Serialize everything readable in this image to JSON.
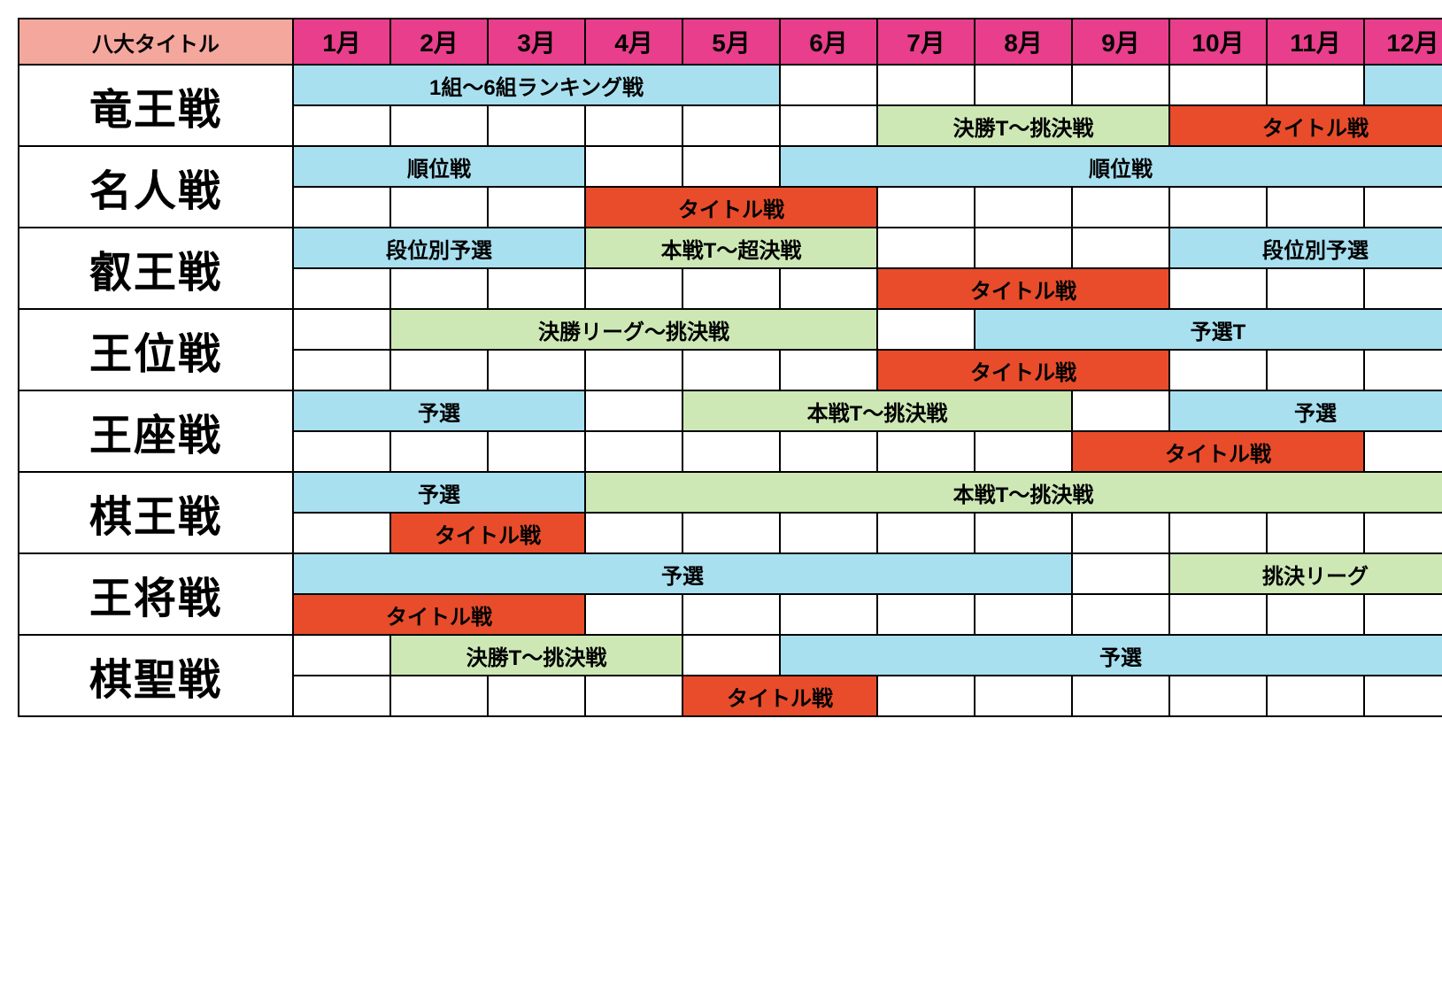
{
  "colors": {
    "corner_bg": "#F4A79D",
    "month_bg": "#E83E8C",
    "blue": "#A8E0F0",
    "green": "#CDE8B5",
    "red": "#E84C2B",
    "white": "#FFFFFF",
    "border": "#000000",
    "text": "#000000"
  },
  "fonts": {
    "title_size": 48,
    "header_size": 28,
    "corner_size": 24,
    "bar_size": 24
  },
  "header": {
    "corner": "八大タイトル",
    "months": [
      "1月",
      "2月",
      "3月",
      "4月",
      "5月",
      "6月",
      "7月",
      "8月",
      "9月",
      "10月",
      "11月",
      "12月"
    ]
  },
  "titles": [
    {
      "name": "竜王戦",
      "rows": [
        [
          {
            "start": 1,
            "span": 5,
            "color": "blue",
            "label": "1組〜6組ランキング戦"
          },
          {
            "start": 6,
            "span": 1,
            "color": "white",
            "label": ""
          },
          {
            "start": 7,
            "span": 1,
            "color": "white",
            "label": ""
          },
          {
            "start": 8,
            "span": 1,
            "color": "white",
            "label": ""
          },
          {
            "start": 9,
            "span": 1,
            "color": "white",
            "label": ""
          },
          {
            "start": 10,
            "span": 1,
            "color": "white",
            "label": ""
          },
          {
            "start": 11,
            "span": 1,
            "color": "white",
            "label": ""
          },
          {
            "start": 12,
            "span": 1,
            "color": "blue",
            "label": ""
          }
        ],
        [
          {
            "start": 1,
            "span": 1,
            "color": "white",
            "label": ""
          },
          {
            "start": 2,
            "span": 1,
            "color": "white",
            "label": ""
          },
          {
            "start": 3,
            "span": 1,
            "color": "white",
            "label": ""
          },
          {
            "start": 4,
            "span": 1,
            "color": "white",
            "label": ""
          },
          {
            "start": 5,
            "span": 1,
            "color": "white",
            "label": ""
          },
          {
            "start": 6,
            "span": 1,
            "color": "white",
            "label": ""
          },
          {
            "start": 7,
            "span": 3,
            "color": "green",
            "label": "決勝T〜挑決戦"
          },
          {
            "start": 10,
            "span": 3,
            "color": "red",
            "label": "タイトル戦"
          }
        ]
      ]
    },
    {
      "name": "名人戦",
      "rows": [
        [
          {
            "start": 1,
            "span": 3,
            "color": "blue",
            "label": "順位戦"
          },
          {
            "start": 4,
            "span": 1,
            "color": "white",
            "label": ""
          },
          {
            "start": 5,
            "span": 1,
            "color": "white",
            "label": ""
          },
          {
            "start": 6,
            "span": 7,
            "color": "blue",
            "label": "順位戦"
          }
        ],
        [
          {
            "start": 1,
            "span": 1,
            "color": "white",
            "label": ""
          },
          {
            "start": 2,
            "span": 1,
            "color": "white",
            "label": ""
          },
          {
            "start": 3,
            "span": 1,
            "color": "white",
            "label": ""
          },
          {
            "start": 4,
            "span": 3,
            "color": "red",
            "label": "タイトル戦"
          },
          {
            "start": 7,
            "span": 1,
            "color": "white",
            "label": ""
          },
          {
            "start": 8,
            "span": 1,
            "color": "white",
            "label": ""
          },
          {
            "start": 9,
            "span": 1,
            "color": "white",
            "label": ""
          },
          {
            "start": 10,
            "span": 1,
            "color": "white",
            "label": ""
          },
          {
            "start": 11,
            "span": 1,
            "color": "white",
            "label": ""
          },
          {
            "start": 12,
            "span": 1,
            "color": "white",
            "label": ""
          }
        ]
      ]
    },
    {
      "name": "叡王戦",
      "rows": [
        [
          {
            "start": 1,
            "span": 3,
            "color": "blue",
            "label": "段位別予選"
          },
          {
            "start": 4,
            "span": 3,
            "color": "green",
            "label": "本戦T〜超決戦"
          },
          {
            "start": 7,
            "span": 1,
            "color": "white",
            "label": ""
          },
          {
            "start": 8,
            "span": 1,
            "color": "white",
            "label": ""
          },
          {
            "start": 9,
            "span": 1,
            "color": "white",
            "label": ""
          },
          {
            "start": 10,
            "span": 3,
            "color": "blue",
            "label": "段位別予選"
          }
        ],
        [
          {
            "start": 1,
            "span": 1,
            "color": "white",
            "label": ""
          },
          {
            "start": 2,
            "span": 1,
            "color": "white",
            "label": ""
          },
          {
            "start": 3,
            "span": 1,
            "color": "white",
            "label": ""
          },
          {
            "start": 4,
            "span": 1,
            "color": "white",
            "label": ""
          },
          {
            "start": 5,
            "span": 1,
            "color": "white",
            "label": ""
          },
          {
            "start": 6,
            "span": 1,
            "color": "white",
            "label": ""
          },
          {
            "start": 7,
            "span": 3,
            "color": "red",
            "label": "タイトル戦"
          },
          {
            "start": 10,
            "span": 1,
            "color": "white",
            "label": ""
          },
          {
            "start": 11,
            "span": 1,
            "color": "white",
            "label": ""
          },
          {
            "start": 12,
            "span": 1,
            "color": "white",
            "label": ""
          }
        ]
      ]
    },
    {
      "name": "王位戦",
      "rows": [
        [
          {
            "start": 1,
            "span": 1,
            "color": "white",
            "label": ""
          },
          {
            "start": 2,
            "span": 5,
            "color": "green",
            "label": "決勝リーグ〜挑決戦"
          },
          {
            "start": 7,
            "span": 1,
            "color": "white",
            "label": ""
          },
          {
            "start": 8,
            "span": 5,
            "color": "blue",
            "label": "予選T"
          }
        ],
        [
          {
            "start": 1,
            "span": 1,
            "color": "white",
            "label": ""
          },
          {
            "start": 2,
            "span": 1,
            "color": "white",
            "label": ""
          },
          {
            "start": 3,
            "span": 1,
            "color": "white",
            "label": ""
          },
          {
            "start": 4,
            "span": 1,
            "color": "white",
            "label": ""
          },
          {
            "start": 5,
            "span": 1,
            "color": "white",
            "label": ""
          },
          {
            "start": 6,
            "span": 1,
            "color": "white",
            "label": ""
          },
          {
            "start": 7,
            "span": 3,
            "color": "red",
            "label": "タイトル戦"
          },
          {
            "start": 10,
            "span": 1,
            "color": "white",
            "label": ""
          },
          {
            "start": 11,
            "span": 1,
            "color": "white",
            "label": ""
          },
          {
            "start": 12,
            "span": 1,
            "color": "white",
            "label": ""
          }
        ]
      ]
    },
    {
      "name": "王座戦",
      "rows": [
        [
          {
            "start": 1,
            "span": 3,
            "color": "blue",
            "label": "予選"
          },
          {
            "start": 4,
            "span": 1,
            "color": "white",
            "label": ""
          },
          {
            "start": 5,
            "span": 4,
            "color": "green",
            "label": "本戦T〜挑決戦"
          },
          {
            "start": 9,
            "span": 1,
            "color": "white",
            "label": ""
          },
          {
            "start": 10,
            "span": 3,
            "color": "blue",
            "label": "予選"
          }
        ],
        [
          {
            "start": 1,
            "span": 1,
            "color": "white",
            "label": ""
          },
          {
            "start": 2,
            "span": 1,
            "color": "white",
            "label": ""
          },
          {
            "start": 3,
            "span": 1,
            "color": "white",
            "label": ""
          },
          {
            "start": 4,
            "span": 1,
            "color": "white",
            "label": ""
          },
          {
            "start": 5,
            "span": 1,
            "color": "white",
            "label": ""
          },
          {
            "start": 6,
            "span": 1,
            "color": "white",
            "label": ""
          },
          {
            "start": 7,
            "span": 1,
            "color": "white",
            "label": ""
          },
          {
            "start": 8,
            "span": 1,
            "color": "white",
            "label": ""
          },
          {
            "start": 9,
            "span": 3,
            "color": "red",
            "label": "タイトル戦"
          },
          {
            "start": 12,
            "span": 1,
            "color": "white",
            "label": ""
          }
        ]
      ]
    },
    {
      "name": "棋王戦",
      "rows": [
        [
          {
            "start": 1,
            "span": 3,
            "color": "blue",
            "label": "予選"
          },
          {
            "start": 4,
            "span": 9,
            "color": "green",
            "label": "本戦T〜挑決戦"
          }
        ],
        [
          {
            "start": 1,
            "span": 1,
            "color": "white",
            "label": ""
          },
          {
            "start": 2,
            "span": 2,
            "color": "red",
            "label": "タイトル戦"
          },
          {
            "start": 4,
            "span": 1,
            "color": "white",
            "label": ""
          },
          {
            "start": 5,
            "span": 1,
            "color": "white",
            "label": ""
          },
          {
            "start": 6,
            "span": 1,
            "color": "white",
            "label": ""
          },
          {
            "start": 7,
            "span": 1,
            "color": "white",
            "label": ""
          },
          {
            "start": 8,
            "span": 1,
            "color": "white",
            "label": ""
          },
          {
            "start": 9,
            "span": 1,
            "color": "white",
            "label": ""
          },
          {
            "start": 10,
            "span": 1,
            "color": "white",
            "label": ""
          },
          {
            "start": 11,
            "span": 1,
            "color": "white",
            "label": ""
          },
          {
            "start": 12,
            "span": 1,
            "color": "white",
            "label": ""
          }
        ]
      ]
    },
    {
      "name": "王将戦",
      "rows": [
        [
          {
            "start": 1,
            "span": 8,
            "color": "blue",
            "label": "予選"
          },
          {
            "start": 9,
            "span": 1,
            "color": "white",
            "label": ""
          },
          {
            "start": 10,
            "span": 3,
            "color": "green",
            "label": "挑決リーグ"
          }
        ],
        [
          {
            "start": 1,
            "span": 3,
            "color": "red",
            "label": "タイトル戦"
          },
          {
            "start": 4,
            "span": 1,
            "color": "white",
            "label": ""
          },
          {
            "start": 5,
            "span": 1,
            "color": "white",
            "label": ""
          },
          {
            "start": 6,
            "span": 1,
            "color": "white",
            "label": ""
          },
          {
            "start": 7,
            "span": 1,
            "color": "white",
            "label": ""
          },
          {
            "start": 8,
            "span": 1,
            "color": "white",
            "label": ""
          },
          {
            "start": 9,
            "span": 1,
            "color": "white",
            "label": ""
          },
          {
            "start": 10,
            "span": 1,
            "color": "white",
            "label": ""
          },
          {
            "start": 11,
            "span": 1,
            "color": "white",
            "label": ""
          },
          {
            "start": 12,
            "span": 1,
            "color": "white",
            "label": ""
          }
        ]
      ]
    },
    {
      "name": "棋聖戦",
      "rows": [
        [
          {
            "start": 1,
            "span": 1,
            "color": "white",
            "label": ""
          },
          {
            "start": 2,
            "span": 3,
            "color": "green",
            "label": "決勝T〜挑決戦"
          },
          {
            "start": 5,
            "span": 1,
            "color": "white",
            "label": ""
          },
          {
            "start": 6,
            "span": 7,
            "color": "blue",
            "label": "予選"
          }
        ],
        [
          {
            "start": 1,
            "span": 1,
            "color": "white",
            "label": ""
          },
          {
            "start": 2,
            "span": 1,
            "color": "white",
            "label": ""
          },
          {
            "start": 3,
            "span": 1,
            "color": "white",
            "label": ""
          },
          {
            "start": 4,
            "span": 1,
            "color": "white",
            "label": ""
          },
          {
            "start": 5,
            "span": 2,
            "color": "red",
            "label": "タイトル戦"
          },
          {
            "start": 7,
            "span": 1,
            "color": "white",
            "label": ""
          },
          {
            "start": 8,
            "span": 1,
            "color": "white",
            "label": ""
          },
          {
            "start": 9,
            "span": 1,
            "color": "white",
            "label": ""
          },
          {
            "start": 10,
            "span": 1,
            "color": "white",
            "label": ""
          },
          {
            "start": 11,
            "span": 1,
            "color": "white",
            "label": ""
          },
          {
            "start": 12,
            "span": 1,
            "color": "white",
            "label": ""
          }
        ]
      ]
    }
  ]
}
